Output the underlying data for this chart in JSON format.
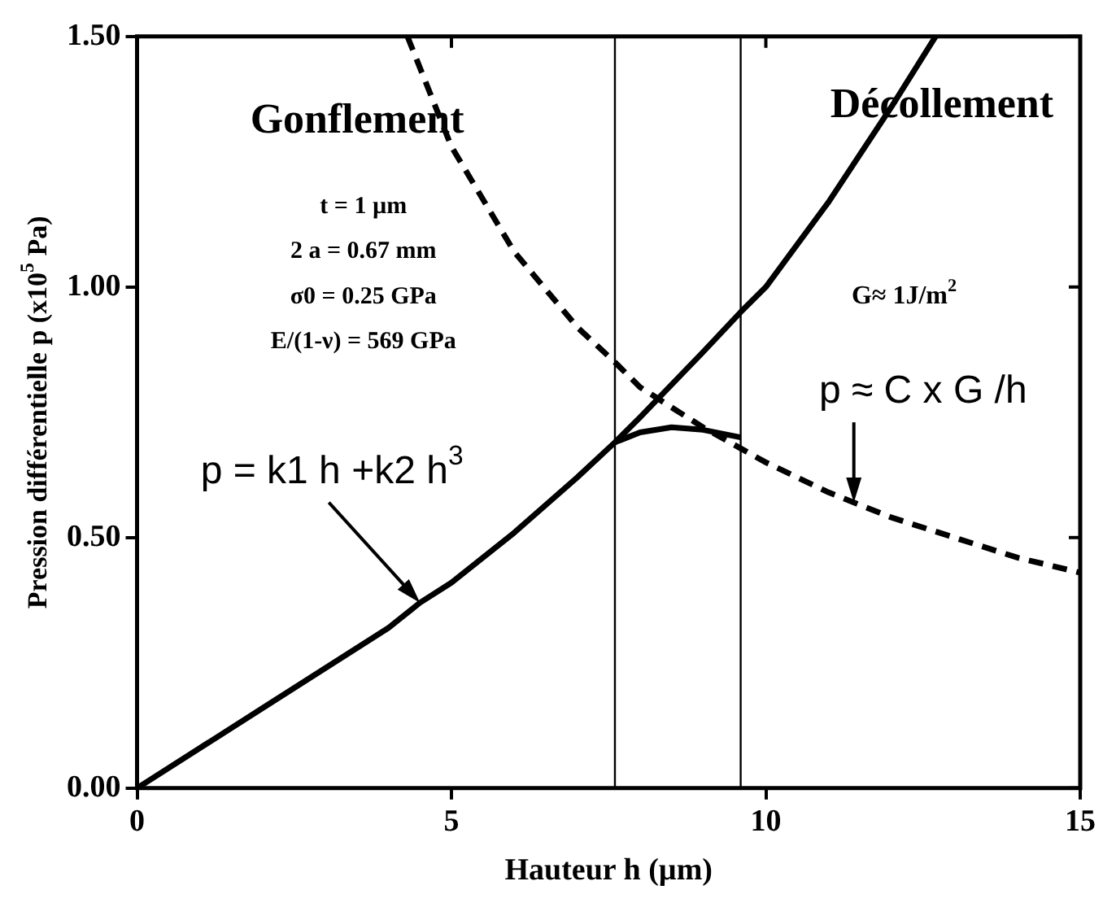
{
  "chart_data": {
    "type": "line",
    "xlabel": "Hauteur h (µm)",
    "ylabel": "Pression différentielle p (x10$^{5}$ Pa)",
    "xlim": [
      0,
      15
    ],
    "ylim": [
      0,
      1.5
    ],
    "xticks": [
      0,
      5,
      10,
      15
    ],
    "yticks": [
      {
        "value": 0,
        "label": "0.00"
      },
      {
        "value": 0.5,
        "label": "0.50"
      },
      {
        "value": 1,
        "label": "1.00"
      },
      {
        "value": 1.5,
        "label": "1.50"
      }
    ],
    "grid": false,
    "legend": false,
    "marker": "none",
    "series": [
      {
        "color": "#000000",
        "line_style": "solid",
        "x": [
          0,
          1,
          2,
          3,
          4,
          4.5,
          5,
          6,
          7,
          7.6,
          8,
          9,
          9.6,
          10,
          11,
          12,
          12.7
        ],
        "values": [
          0,
          0.08,
          0.16,
          0.24,
          0.32,
          0.37,
          0.41,
          0.51,
          0.62,
          0.69,
          0.74,
          0.87,
          0.95,
          1.0,
          1.17,
          1.36,
          1.5
        ]
      },
      {
        "color": "#000000",
        "line_style": "solid",
        "x": [
          7.6,
          8,
          8.5,
          9,
          9.6
        ],
        "values": [
          0.69,
          0.71,
          0.72,
          0.715,
          0.7
        ]
      },
      {
        "color": "#000000",
        "line_style": "dashed",
        "x": [
          4.3,
          5,
          6,
          7,
          7.6,
          8,
          9,
          10,
          11,
          12,
          13,
          14,
          15
        ],
        "values": [
          1.5,
          1.28,
          1.07,
          0.92,
          0.85,
          0.8,
          0.72,
          0.65,
          0.59,
          0.54,
          0.5,
          0.46,
          0.43
        ]
      }
    ],
    "ref_lines": [
      {
        "axis": "x",
        "value": 7.6,
        "color": "#000000"
      },
      {
        "axis": "x",
        "value": 9.6,
        "color": "#000000"
      }
    ],
    "annotations": [
      "Gonflement",
      "Décollement",
      "t = 1 µm",
      "2 a = 0.67 mm",
      "σ0 = 0.25 GPa",
      "E/(1-ν) = 569 GPa",
      "G≈ 1J/m$^{2}$",
      {
        "text": "p = k1 h +k2 h$^{3}$",
        "x": 4.5,
        "y": 0.37
      },
      {
        "text": "p ≈ C x G /h",
        "x": 11.4,
        "y": 0.57
      }
    ]
  }
}
